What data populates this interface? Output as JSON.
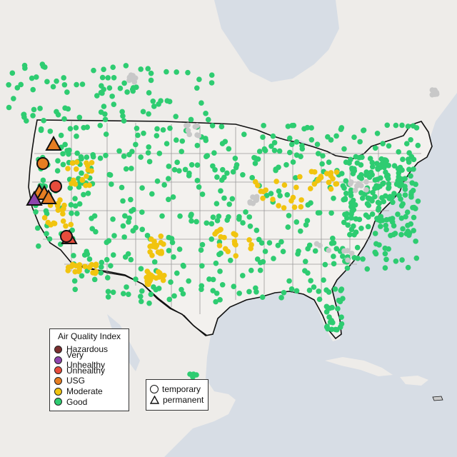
{
  "legend": {
    "title": "Air Quality Index",
    "categories": [
      {
        "label": "Hazardous",
        "color": "#7b2f2f"
      },
      {
        "label": "Very Unhealthy",
        "color": "#8e44ad"
      },
      {
        "label": "Unhealthy",
        "color": "#e74c3c"
      },
      {
        "label": "USG",
        "color": "#e67e22"
      },
      {
        "label": "Moderate",
        "color": "#f1c40f"
      },
      {
        "label": "Good",
        "color": "#2ecc71"
      }
    ]
  },
  "monitor_types": {
    "temporary": "temporary",
    "permanent": "permanent"
  },
  "colors": {
    "no_data": "#c8c8c8",
    "land": "#efedea",
    "water": "#d9dfe6",
    "border": "#111111"
  },
  "map_style": "grey basemap with US state boundaries, Canada and Mexico in light grey"
}
